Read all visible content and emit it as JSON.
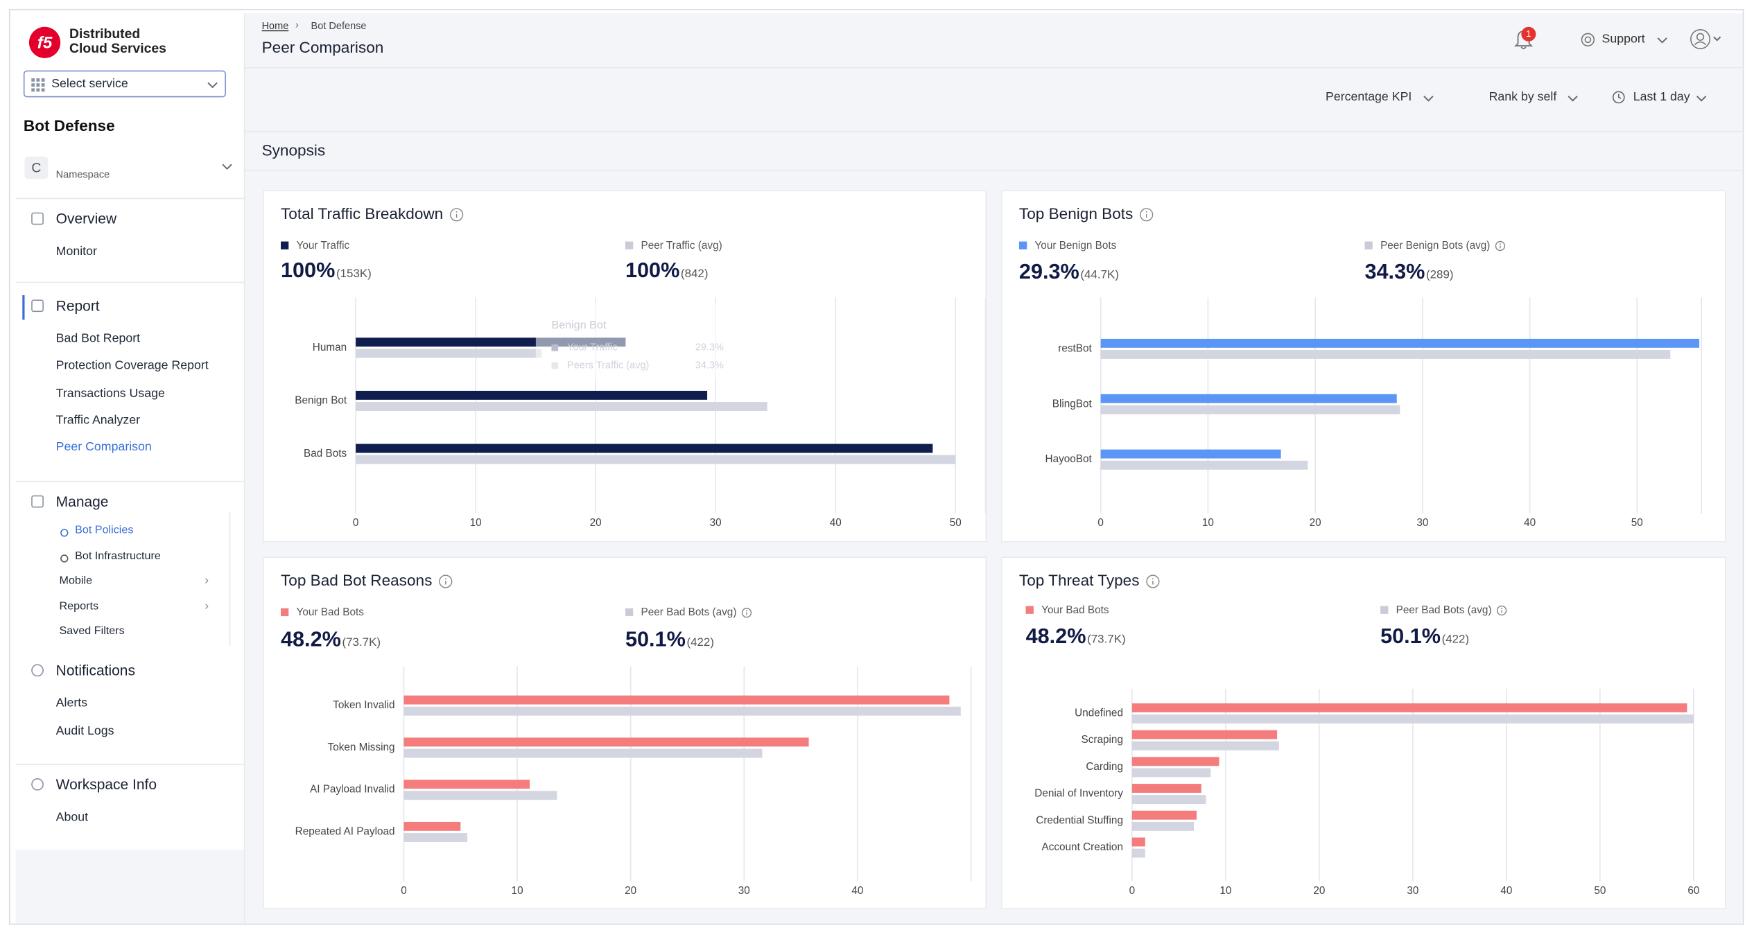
{
  "sidebar": {
    "logo": [
      "Distributed",
      "Cloud Services"
    ],
    "service_select": "Select service",
    "app": "Bot Defense",
    "namespace_initial": "C",
    "namespace": "Namespace",
    "nav": [
      {
        "title": "Overview",
        "items": [
          "Monitor"
        ]
      },
      {
        "title": "Report",
        "items": [
          "Bad Bot Report",
          "Protection Coverage Report",
          "Transactions Usage",
          "Traffic Analyzer",
          "Peer Comparison"
        ]
      },
      {
        "title": "Manage",
        "items": [
          "Bot Policies",
          "Bot Infrastructure",
          "Mobile",
          "Reports",
          "Saved Filters"
        ]
      },
      {
        "title": "Notifications",
        "items": [
          "Alerts",
          "Audit Logs"
        ]
      },
      {
        "title": "Workspace Info",
        "items": [
          "About"
        ]
      }
    ]
  },
  "header": {
    "breadcrumb": [
      "Home",
      "Bot Defense"
    ],
    "title": "Peer Comparison",
    "notification_count": 1,
    "support": "Support"
  },
  "toolbar": [
    "Percentage KPI",
    "Rank by self",
    "Last 1 day"
  ],
  "section": "Synopsis",
  "tooltip": {
    "title": "Benign Bot",
    "rows": [
      [
        "Your Traffic",
        "29.3%"
      ],
      [
        "Peers Traffic (avg)",
        "34.3%"
      ]
    ]
  },
  "chart_data": [
    {
      "type": "bar",
      "orientation": "horizontal",
      "title": "Total Traffic Breakdown",
      "categories": [
        "Human",
        "Benign Bot",
        "Bad Bots"
      ],
      "series": [
        {
          "name": "Your Traffic",
          "color": "#0f1d4f",
          "summary": "100%",
          "summary_count": "(153K)",
          "values": [
            22.5,
            29.3,
            48.1
          ]
        },
        {
          "name": "Peer Traffic (avg)",
          "color": "#d3d6e0",
          "summary": "100%",
          "summary_count": "(842)",
          "values": [
            15.5,
            34.3,
            50.0
          ]
        }
      ],
      "xlim": [
        0,
        52.5
      ],
      "xticks": [
        0,
        10,
        20,
        30,
        40,
        50
      ],
      "grid": true
    },
    {
      "type": "bar",
      "orientation": "horizontal",
      "title": "Top Benign Bots",
      "categories": [
        "restBot",
        "BlingBot",
        "HayooBot"
      ],
      "series": [
        {
          "name": "Your Benign Bots",
          "color": "#5b95f5",
          "summary": "29.3%",
          "summary_count": "(44.7K)",
          "values": [
            55.8,
            27.6,
            16.8
          ]
        },
        {
          "name": "Peer Benign Bots (avg)",
          "color": "#d3d6e0",
          "summary": "34.3%",
          "summary_count": "(289)",
          "values": [
            53.1,
            27.9,
            19.3
          ]
        }
      ],
      "xlim": [
        0,
        56
      ],
      "xticks": [
        0,
        10,
        20,
        30,
        40,
        50
      ],
      "grid": true
    },
    {
      "type": "bar",
      "orientation": "horizontal",
      "title": "Top Bad Bot Reasons",
      "categories": [
        "Token Invalid",
        "Token Missing",
        "AI Payload Invalid",
        "Repeated AI Payload"
      ],
      "series": [
        {
          "name": "Your Bad Bots",
          "color": "#f47c7c",
          "summary": "48.2%",
          "summary_count": "(73.7K)",
          "values": [
            48.1,
            35.7,
            11.1,
            5.0
          ]
        },
        {
          "name": "Peer Bad Bots (avg)",
          "color": "#d3d6e0",
          "summary": "50.1%",
          "summary_count": "(422)",
          "values": [
            49.1,
            31.6,
            13.5,
            5.6
          ]
        }
      ],
      "xlim": [
        0,
        50
      ],
      "xticks": [
        0,
        10,
        20,
        30,
        40
      ],
      "grid": true
    },
    {
      "type": "bar",
      "orientation": "horizontal",
      "title": "Top Threat Types",
      "categories": [
        "Undefined",
        "Scraping",
        "Carding",
        "Denial of Inventory",
        "Credential Stuffing",
        "Account Creation"
      ],
      "series": [
        {
          "name": "Your Bad Bots",
          "color": "#f47c7c",
          "summary": "48.2%",
          "summary_count": "(73.7K)",
          "values": [
            59.3,
            15.5,
            9.3,
            7.4,
            6.9,
            1.4
          ]
        },
        {
          "name": "Peer Bad Bots (avg)",
          "color": "#d3d6e0",
          "summary": "50.1%",
          "summary_count": "(422)",
          "values": [
            60.0,
            15.7,
            8.4,
            7.9,
            6.6,
            1.4
          ]
        }
      ],
      "xlim": [
        0,
        60
      ],
      "xticks": [
        0,
        10,
        20,
        30,
        40,
        50,
        60
      ],
      "grid": true
    }
  ]
}
